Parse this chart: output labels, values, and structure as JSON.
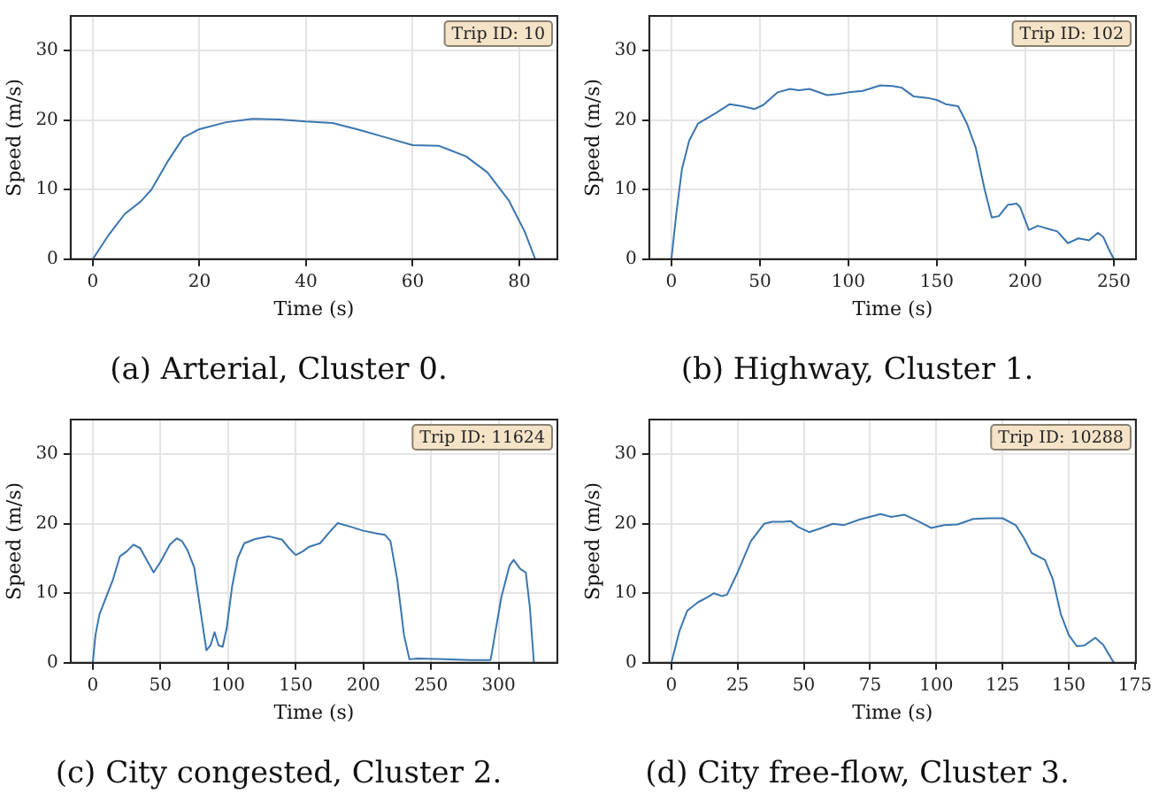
{
  "chart_data": [
    {
      "type": "line",
      "title": "(a) Arterial, Cluster 0.",
      "xlabel": "Time (s)",
      "ylabel": "Speed (m/s)",
      "annotations": [
        "Trip ID: 10"
      ],
      "grid": true,
      "xlim": [
        -4.15,
        87.15
      ],
      "xticks": [
        0,
        20,
        40,
        60,
        80
      ],
      "ylim": [
        0,
        35
      ],
      "yticks": [
        0,
        10,
        20,
        30
      ],
      "x": [
        0,
        3,
        6,
        9,
        11,
        14,
        17,
        20,
        25,
        30,
        35,
        40,
        45,
        50,
        55,
        60,
        65,
        70,
        74,
        78,
        81,
        83
      ],
      "series": [
        {
          "color": "#3a76af",
          "values": [
            0,
            3.5,
            6.5,
            8.3,
            10,
            14,
            17.5,
            18.7,
            19.7,
            20.2,
            20.1,
            19.8,
            19.6,
            18.6,
            17.5,
            16.4,
            16.3,
            14.8,
            12.5,
            8.5,
            4,
            0
          ]
        }
      ]
    },
    {
      "type": "line",
      "title": "(b) Highway, Cluster 1.",
      "xlabel": "Time (s)",
      "ylabel": "Speed (m/s)",
      "annotations": [
        "Trip ID: 102"
      ],
      "grid": true,
      "xlim": [
        -12.5,
        262.5
      ],
      "xticks": [
        0,
        50,
        100,
        150,
        200,
        250
      ],
      "ylim": [
        0,
        35
      ],
      "yticks": [
        0,
        10,
        20,
        30
      ],
      "x": [
        0,
        3,
        6,
        10,
        15,
        25,
        33,
        40,
        47,
        52,
        60,
        67,
        72,
        78,
        88,
        95,
        100,
        108,
        118,
        125,
        130,
        137,
        145,
        150,
        155,
        162,
        167,
        172,
        177,
        181,
        185,
        190,
        195,
        197,
        202,
        207,
        215,
        218,
        224,
        230,
        236,
        241,
        244,
        247,
        250
      ],
      "series": [
        {
          "color": "#3a76af",
          "values": [
            0,
            7,
            13,
            17,
            19.5,
            21,
            22.3,
            22,
            21.6,
            22.2,
            24,
            24.5,
            24.3,
            24.5,
            23.6,
            23.8,
            24,
            24.2,
            25,
            24.9,
            24.7,
            23.4,
            23.2,
            22.9,
            22.3,
            22,
            19.5,
            16,
            10,
            6,
            6.2,
            7.8,
            8,
            7.5,
            4.2,
            4.8,
            4.2,
            4,
            2.3,
            3,
            2.7,
            3.8,
            3.2,
            1.5,
            0
          ]
        }
      ]
    },
    {
      "type": "line",
      "title": "(c) City congested, Cluster 2.",
      "xlabel": "Time (s)",
      "ylabel": "Speed (m/s)",
      "annotations": [
        "Trip ID: 11624"
      ],
      "grid": true,
      "xlim": [
        -16.35,
        343.35
      ],
      "xticks": [
        0,
        50,
        100,
        150,
        200,
        250,
        300
      ],
      "ylim": [
        0,
        35
      ],
      "yticks": [
        0,
        10,
        20,
        30
      ],
      "x": [
        0,
        2,
        5,
        10,
        15,
        20,
        25,
        30,
        35,
        45,
        50,
        57,
        62,
        66,
        70,
        75,
        80,
        84,
        87,
        90,
        93,
        96,
        99,
        103,
        107,
        112,
        120,
        130,
        140,
        145,
        150,
        155,
        160,
        168,
        175,
        181,
        190,
        200,
        210,
        216,
        220,
        225,
        230,
        234,
        240,
        260,
        280,
        294,
        298,
        302,
        308,
        311,
        316,
        320,
        323,
        326
      ],
      "series": [
        {
          "color": "#3a76af",
          "values": [
            0,
            4,
            7,
            9.5,
            12,
            15.3,
            16,
            17,
            16.5,
            13,
            14.5,
            17,
            17.9,
            17.5,
            16.2,
            13.7,
            7,
            1.8,
            2.5,
            4.4,
            2.5,
            2.3,
            5,
            11,
            15,
            17.2,
            17.8,
            18.2,
            17.7,
            16.5,
            15.5,
            16,
            16.7,
            17.2,
            18.8,
            20.1,
            19.6,
            19,
            18.6,
            18.4,
            17.5,
            12,
            4,
            0.5,
            0.6,
            0.5,
            0.4,
            0.4,
            5,
            9.5,
            14,
            14.8,
            13.5,
            13,
            8,
            0
          ]
        }
      ]
    },
    {
      "type": "line",
      "title": "(d) City free-flow, Cluster 3.",
      "xlabel": "Time (s)",
      "ylabel": "Speed (m/s)",
      "annotations": [
        "Trip ID: 10288"
      ],
      "grid": true,
      "xlim": [
        -8.35,
        175.35
      ],
      "xticks": [
        0,
        25,
        50,
        75,
        100,
        125,
        150,
        175
      ],
      "ylim": [
        0,
        35
      ],
      "yticks": [
        0,
        10,
        20,
        30
      ],
      "x": [
        0,
        3,
        6,
        10,
        14,
        16,
        19,
        21,
        25,
        30,
        35,
        38,
        42,
        45,
        48,
        52,
        56,
        61,
        65,
        71,
        79,
        83,
        88,
        93,
        98,
        103,
        108,
        114,
        120,
        125,
        130,
        133,
        136,
        141,
        144,
        147,
        150,
        153,
        156,
        160,
        163,
        167
      ],
      "series": [
        {
          "color": "#3a76af",
          "values": [
            0,
            4.5,
            7.5,
            8.7,
            9.5,
            10,
            9.6,
            9.8,
            13,
            17.5,
            20,
            20.3,
            20.3,
            20.4,
            19.5,
            18.8,
            19.3,
            20,
            19.8,
            20.6,
            21.4,
            21,
            21.3,
            20.4,
            19.4,
            19.8,
            19.9,
            20.7,
            20.8,
            20.8,
            19.8,
            18,
            15.8,
            14.8,
            12,
            7,
            4,
            2.4,
            2.5,
            3.6,
            2.6,
            0
          ]
        }
      ]
    }
  ]
}
